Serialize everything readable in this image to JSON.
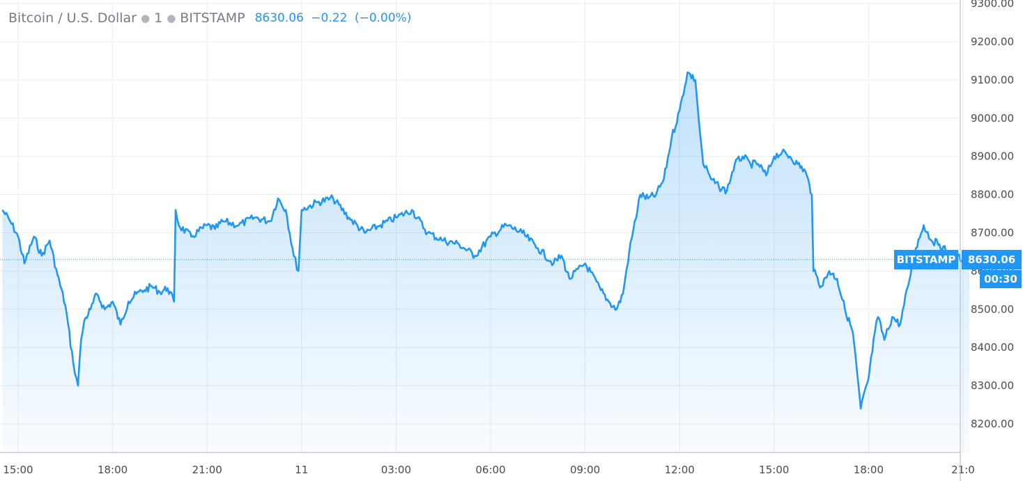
{
  "legend": {
    "symbol": "Bitcoin / U.S. Dollar",
    "interval": "1",
    "exchange": "BITSTAMP",
    "last": "8630.06",
    "change": "−0.22",
    "change_pct": "(−0.00%)"
  },
  "price_badge": {
    "label": "BITSTAMP",
    "value": "8630.06",
    "countdown": "00:30"
  },
  "colors": {
    "line": "#2196f3",
    "grid": "#ececec",
    "axis_text": "#4a4a4a",
    "badge": "#2196f3"
  },
  "chart_data": {
    "type": "area",
    "title": "",
    "xlabel": "",
    "ylabel": "",
    "ylim": [
      8140,
      9300
    ],
    "y_ticks": [
      8200,
      8300,
      8400,
      8500,
      8600,
      8700,
      8800,
      8900,
      9000,
      9100,
      9200,
      9300
    ],
    "y_tick_labels": [
      "8200.00",
      "8300.00",
      "8400.00",
      "8500.00",
      "8600.00",
      "8700.00",
      "8800.00",
      "8900.00",
      "9000.00",
      "9100.00",
      "9200.00",
      "9300.00"
    ],
    "x_ticks": [
      15,
      18,
      21,
      24,
      27,
      30,
      33,
      36,
      39,
      42,
      45
    ],
    "x_tick_labels": [
      "15:00",
      "18:00",
      "21:00",
      "11",
      "03:00",
      "06:00",
      "09:00",
      "12:00",
      "15:00",
      "18:00",
      "21:0"
    ],
    "last_value": 8630.06,
    "series": [
      {
        "x": [
          14.5,
          14.75,
          15.0,
          15.2,
          15.5,
          15.75,
          16.0,
          16.25,
          16.5,
          16.75,
          16.9,
          17.0,
          17.1,
          17.3,
          17.5,
          17.75,
          18.0,
          18.25,
          18.5,
          18.75,
          19.0,
          19.25,
          19.5,
          19.75,
          19.95,
          20.0,
          20.1,
          20.5,
          21.0,
          21.25,
          21.5,
          22.0,
          22.5,
          23.0,
          23.25,
          23.5,
          23.75,
          23.9,
          24.0,
          24.5,
          25.0,
          25.5,
          26.0,
          26.5,
          27.0,
          27.5,
          28.0,
          28.5,
          29.0,
          29.5,
          30.0,
          30.5,
          31.0,
          31.5,
          32.0,
          32.25,
          32.5,
          33.0,
          33.5,
          33.75,
          34.0,
          34.2,
          34.4,
          34.75,
          35.0,
          35.25,
          35.5,
          35.75,
          36.0,
          36.25,
          36.5,
          36.65,
          36.75,
          36.9,
          37.0,
          37.25,
          37.5,
          37.75,
          38.0,
          38.25,
          38.5,
          38.75,
          39.0,
          39.25,
          39.5,
          39.75,
          40.0,
          40.2,
          40.25,
          40.5,
          40.75,
          41.0,
          41.25,
          41.5,
          41.75,
          42.0,
          42.2,
          42.3,
          42.5,
          42.75,
          43.0,
          43.25,
          43.5,
          43.75,
          44.0,
          44.25,
          44.5,
          44.75,
          45.0,
          45.2
        ],
        "y": [
          8760,
          8730,
          8690,
          8620,
          8690,
          8640,
          8680,
          8590,
          8510,
          8360,
          8300,
          8420,
          8470,
          8500,
          8540,
          8500,
          8520,
          8460,
          8520,
          8540,
          8550,
          8560,
          8545,
          8555,
          8520,
          8760,
          8720,
          8690,
          8720,
          8710,
          8730,
          8720,
          8740,
          8730,
          8790,
          8760,
          8640,
          8600,
          8760,
          8780,
          8790,
          8740,
          8700,
          8720,
          8740,
          8760,
          8700,
          8680,
          8670,
          8640,
          8690,
          8720,
          8700,
          8660,
          8620,
          8640,
          8580,
          8620,
          8550,
          8520,
          8500,
          8540,
          8650,
          8800,
          8790,
          8800,
          8840,
          8950,
          9020,
          9120,
          9100,
          8960,
          8880,
          8860,
          8840,
          8820,
          8810,
          8880,
          8900,
          8880,
          8880,
          8850,
          8900,
          8910,
          8900,
          8880,
          8860,
          8800,
          8600,
          8560,
          8600,
          8580,
          8500,
          8440,
          8240,
          8320,
          8440,
          8480,
          8420,
          8480,
          8460,
          8560,
          8660,
          8720,
          8680,
          8670,
          8650,
          8640,
          8630,
          8630.06
        ]
      }
    ]
  }
}
